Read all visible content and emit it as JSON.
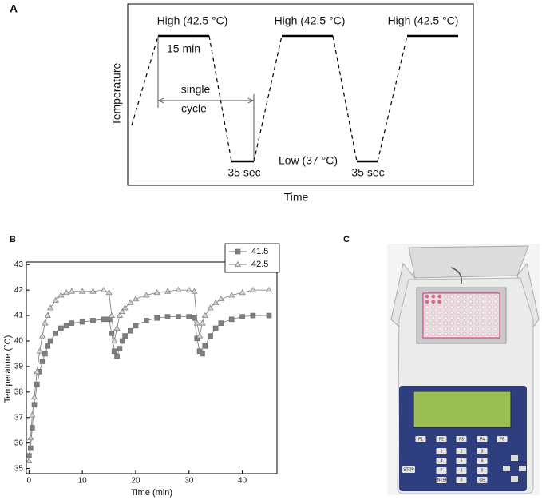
{
  "panel_a": {
    "label": "A",
    "high_labels": [
      "High (42.5 °C)",
      "High (42.5 °C)",
      "High (42.5 °C)"
    ],
    "hold_label": "15 min",
    "cycle_label": [
      "single",
      "cycle"
    ],
    "low_duration_labels": [
      "35 sec",
      "35 sec"
    ],
    "low_label": "Low (37 °C)",
    "y_label": "Temperature",
    "x_label": "Time"
  },
  "chart_data": {
    "type": "line",
    "panel_label": "B",
    "x_label": "Time (min)",
    "y_label": "Temperature (°C)",
    "x": [
      0,
      0.3,
      0.6,
      1,
      1.5,
      2,
      2.5,
      3,
      3.5,
      4,
      5,
      6,
      7,
      8,
      10,
      12,
      14,
      15,
      15.5,
      16,
      16.5,
      17,
      17.5,
      18,
      19,
      20,
      22,
      24,
      26,
      28,
      30,
      31,
      31.5,
      32,
      32.5,
      33,
      34,
      35,
      36,
      38,
      40,
      42,
      45
    ],
    "series": [
      {
        "name": "41.5",
        "color": "#7f7f7f",
        "marker": "square",
        "values": [
          35.5,
          35.8,
          36.6,
          37.5,
          38.3,
          38.8,
          39.2,
          39.5,
          39.8,
          40.0,
          40.3,
          40.5,
          40.6,
          40.7,
          40.75,
          40.8,
          40.85,
          40.85,
          40.3,
          39.6,
          39.4,
          39.7,
          40.0,
          40.2,
          40.4,
          40.6,
          40.8,
          40.9,
          40.95,
          40.95,
          40.95,
          40.9,
          40.1,
          39.6,
          39.5,
          39.8,
          40.2,
          40.5,
          40.7,
          40.85,
          40.95,
          41.0,
          41.0
        ]
      },
      {
        "name": "42.5",
        "color": "#d4d4d4",
        "marker": "triangle",
        "values": [
          35.3,
          36.2,
          37.1,
          37.8,
          38.8,
          39.6,
          40.2,
          40.7,
          41.0,
          41.3,
          41.6,
          41.8,
          41.9,
          41.95,
          41.95,
          41.95,
          42.0,
          41.9,
          41.0,
          40.0,
          40.5,
          41.0,
          41.15,
          41.3,
          41.5,
          41.65,
          41.8,
          41.9,
          41.95,
          42.0,
          42.0,
          41.95,
          40.7,
          40.2,
          40.7,
          41.0,
          41.3,
          41.5,
          41.65,
          41.8,
          41.9,
          42.0,
          42.0
        ]
      }
    ],
    "xlim": [
      -0.5,
      46.5
    ],
    "xticks": [
      0,
      10,
      20,
      30,
      40
    ],
    "ylim": [
      34.8,
      43.1
    ],
    "yticks": [
      35,
      36,
      37,
      38,
      39,
      40,
      41,
      42,
      43
    ],
    "legend": "upper right"
  },
  "panel_c": {
    "label": "C",
    "keys": [
      "F1",
      "F2",
      "F3",
      "F4",
      "F5",
      "STOP",
      "1",
      "2",
      "3",
      "4",
      "5",
      "6",
      "7",
      "8",
      "9",
      "ENTER",
      "0",
      "CE"
    ]
  }
}
